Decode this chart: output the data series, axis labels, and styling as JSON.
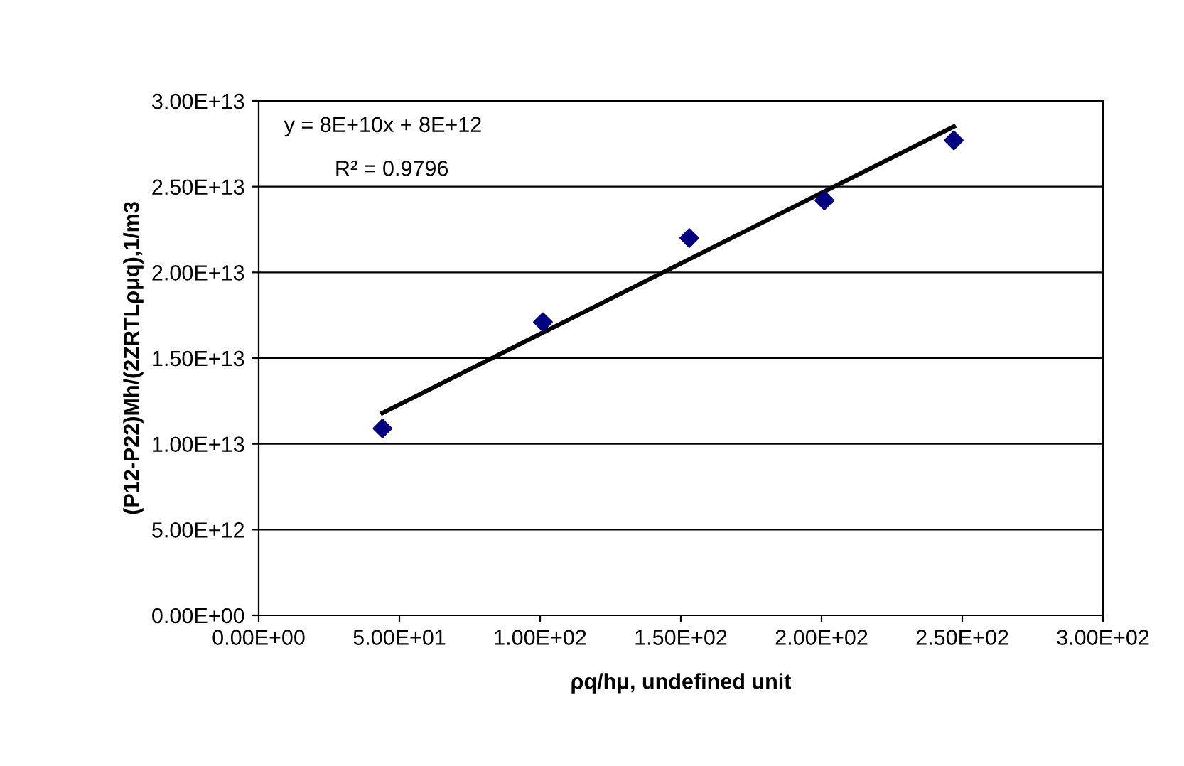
{
  "chart_data": {
    "type": "scatter",
    "xlabel": "ρq/hμ, undefined unit",
    "ylabel": "(P12-P22)Mh/(2ZRTLρμq),1/m3",
    "x": [
      44,
      101,
      153,
      201,
      247
    ],
    "series": [
      {
        "color": "#000080",
        "marker": "diamond",
        "values": [
          10900000000000.0,
          17100000000000.0,
          22000000000000.0,
          24200000000000.0,
          27700000000000.0
        ]
      },
      {
        "type": "line",
        "color": "#000000",
        "marker": "none",
        "line_style": "solid",
        "x": [
          44,
          247
        ],
        "values": [
          11800000000000.0,
          28500000000000.0
        ]
      }
    ],
    "annotations": [
      "y = 8E+10x + 8E+12",
      "R² = 0.9796"
    ],
    "xlim": [
      0,
      300
    ],
    "ylim": [
      0,
      30000000000000.0
    ],
    "xticks": [
      {
        "value": 0,
        "label": "0.00E+00"
      },
      {
        "value": 50,
        "label": "5.00E+01"
      },
      {
        "value": 100,
        "label": "1.00E+02"
      },
      {
        "value": 150,
        "label": "1.50E+02"
      },
      {
        "value": 200,
        "label": "2.00E+02"
      },
      {
        "value": 250,
        "label": "2.50E+02"
      },
      {
        "value": 300,
        "label": "3.00E+02"
      }
    ],
    "yticks": [
      {
        "value": 0,
        "label": "0.00E+00"
      },
      {
        "value": 5000000000000.0,
        "label": "5.00E+12"
      },
      {
        "value": 10000000000000.0,
        "label": "1.00E+13"
      },
      {
        "value": 15000000000000.0,
        "label": "1.50E+13"
      },
      {
        "value": 20000000000000.0,
        "label": "2.00E+13"
      },
      {
        "value": 25000000000000.0,
        "label": "2.50E+13"
      },
      {
        "value": 30000000000000.0,
        "label": "3.00E+13"
      }
    ],
    "grid": "y",
    "legend": false
  }
}
